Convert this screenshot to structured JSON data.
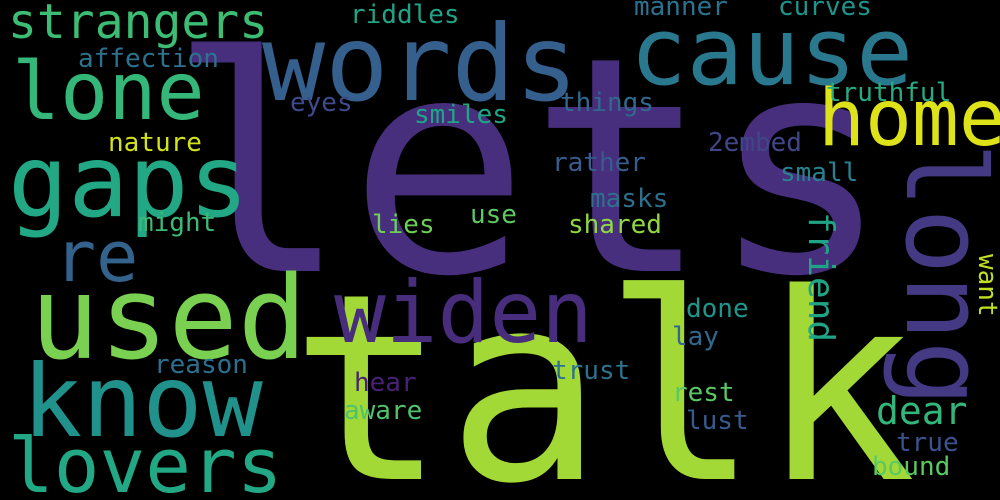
{
  "words": [
    {
      "text": "lets",
      "color": "#482f7e"
    },
    {
      "text": "talk",
      "color": "#a3d936"
    },
    {
      "text": "words",
      "color": "#355f8d"
    },
    {
      "text": "cause",
      "color": "#2a788e"
    },
    {
      "text": "home",
      "color": "#dde318"
    },
    {
      "text": "long",
      "color": "#443a83"
    },
    {
      "text": "used",
      "color": "#7ad151"
    },
    {
      "text": "widen",
      "color": "#472d7b"
    },
    {
      "text": "know",
      "color": "#21918c"
    },
    {
      "text": "lovers",
      "color": "#22a884"
    },
    {
      "text": "gaps",
      "color": "#22a884"
    },
    {
      "text": "lone",
      "color": "#35b779"
    },
    {
      "text": "strangers",
      "color": "#3dbc74"
    },
    {
      "text": "re",
      "color": "#33638d"
    },
    {
      "text": "riddles",
      "color": "#20a386"
    },
    {
      "text": "manner",
      "color": "#2c728e"
    },
    {
      "text": "curves",
      "color": "#20938c"
    },
    {
      "text": "affection",
      "color": "#2c728e"
    },
    {
      "text": "truthful",
      "color": "#25ac82"
    },
    {
      "text": "eyes",
      "color": "#3e4a89"
    },
    {
      "text": "smiles",
      "color": "#20a486"
    },
    {
      "text": "things",
      "color": "#31688e"
    },
    {
      "text": "nature",
      "color": "#d2e21b"
    },
    {
      "text": "rather",
      "color": "#365d8d"
    },
    {
      "text": "2embed",
      "color": "#404688"
    },
    {
      "text": "small",
      "color": "#26828e"
    },
    {
      "text": "masks",
      "color": "#2e6f8e"
    },
    {
      "text": "might",
      "color": "#3bbb75"
    },
    {
      "text": "use",
      "color": "#5ec962"
    },
    {
      "text": "lies",
      "color": "#6ece58"
    },
    {
      "text": "shared",
      "color": "#90d743"
    },
    {
      "text": "friend",
      "color": "#20a486"
    },
    {
      "text": "want",
      "color": "#c2df23"
    },
    {
      "text": "done",
      "color": "#1f958b"
    },
    {
      "text": "lay",
      "color": "#31688e"
    },
    {
      "text": "reason",
      "color": "#2d708e"
    },
    {
      "text": "hear",
      "color": "#482173"
    },
    {
      "text": "trust",
      "color": "#2c728e"
    },
    {
      "text": "rest",
      "color": "#5ac864"
    },
    {
      "text": "aware",
      "color": "#4ec36b"
    },
    {
      "text": "lust",
      "color": "#365c8d"
    },
    {
      "text": "dear",
      "color": "#32b67a"
    },
    {
      "text": "true",
      "color": "#3b528b"
    },
    {
      "text": "bound",
      "color": "#5cc863"
    }
  ]
}
